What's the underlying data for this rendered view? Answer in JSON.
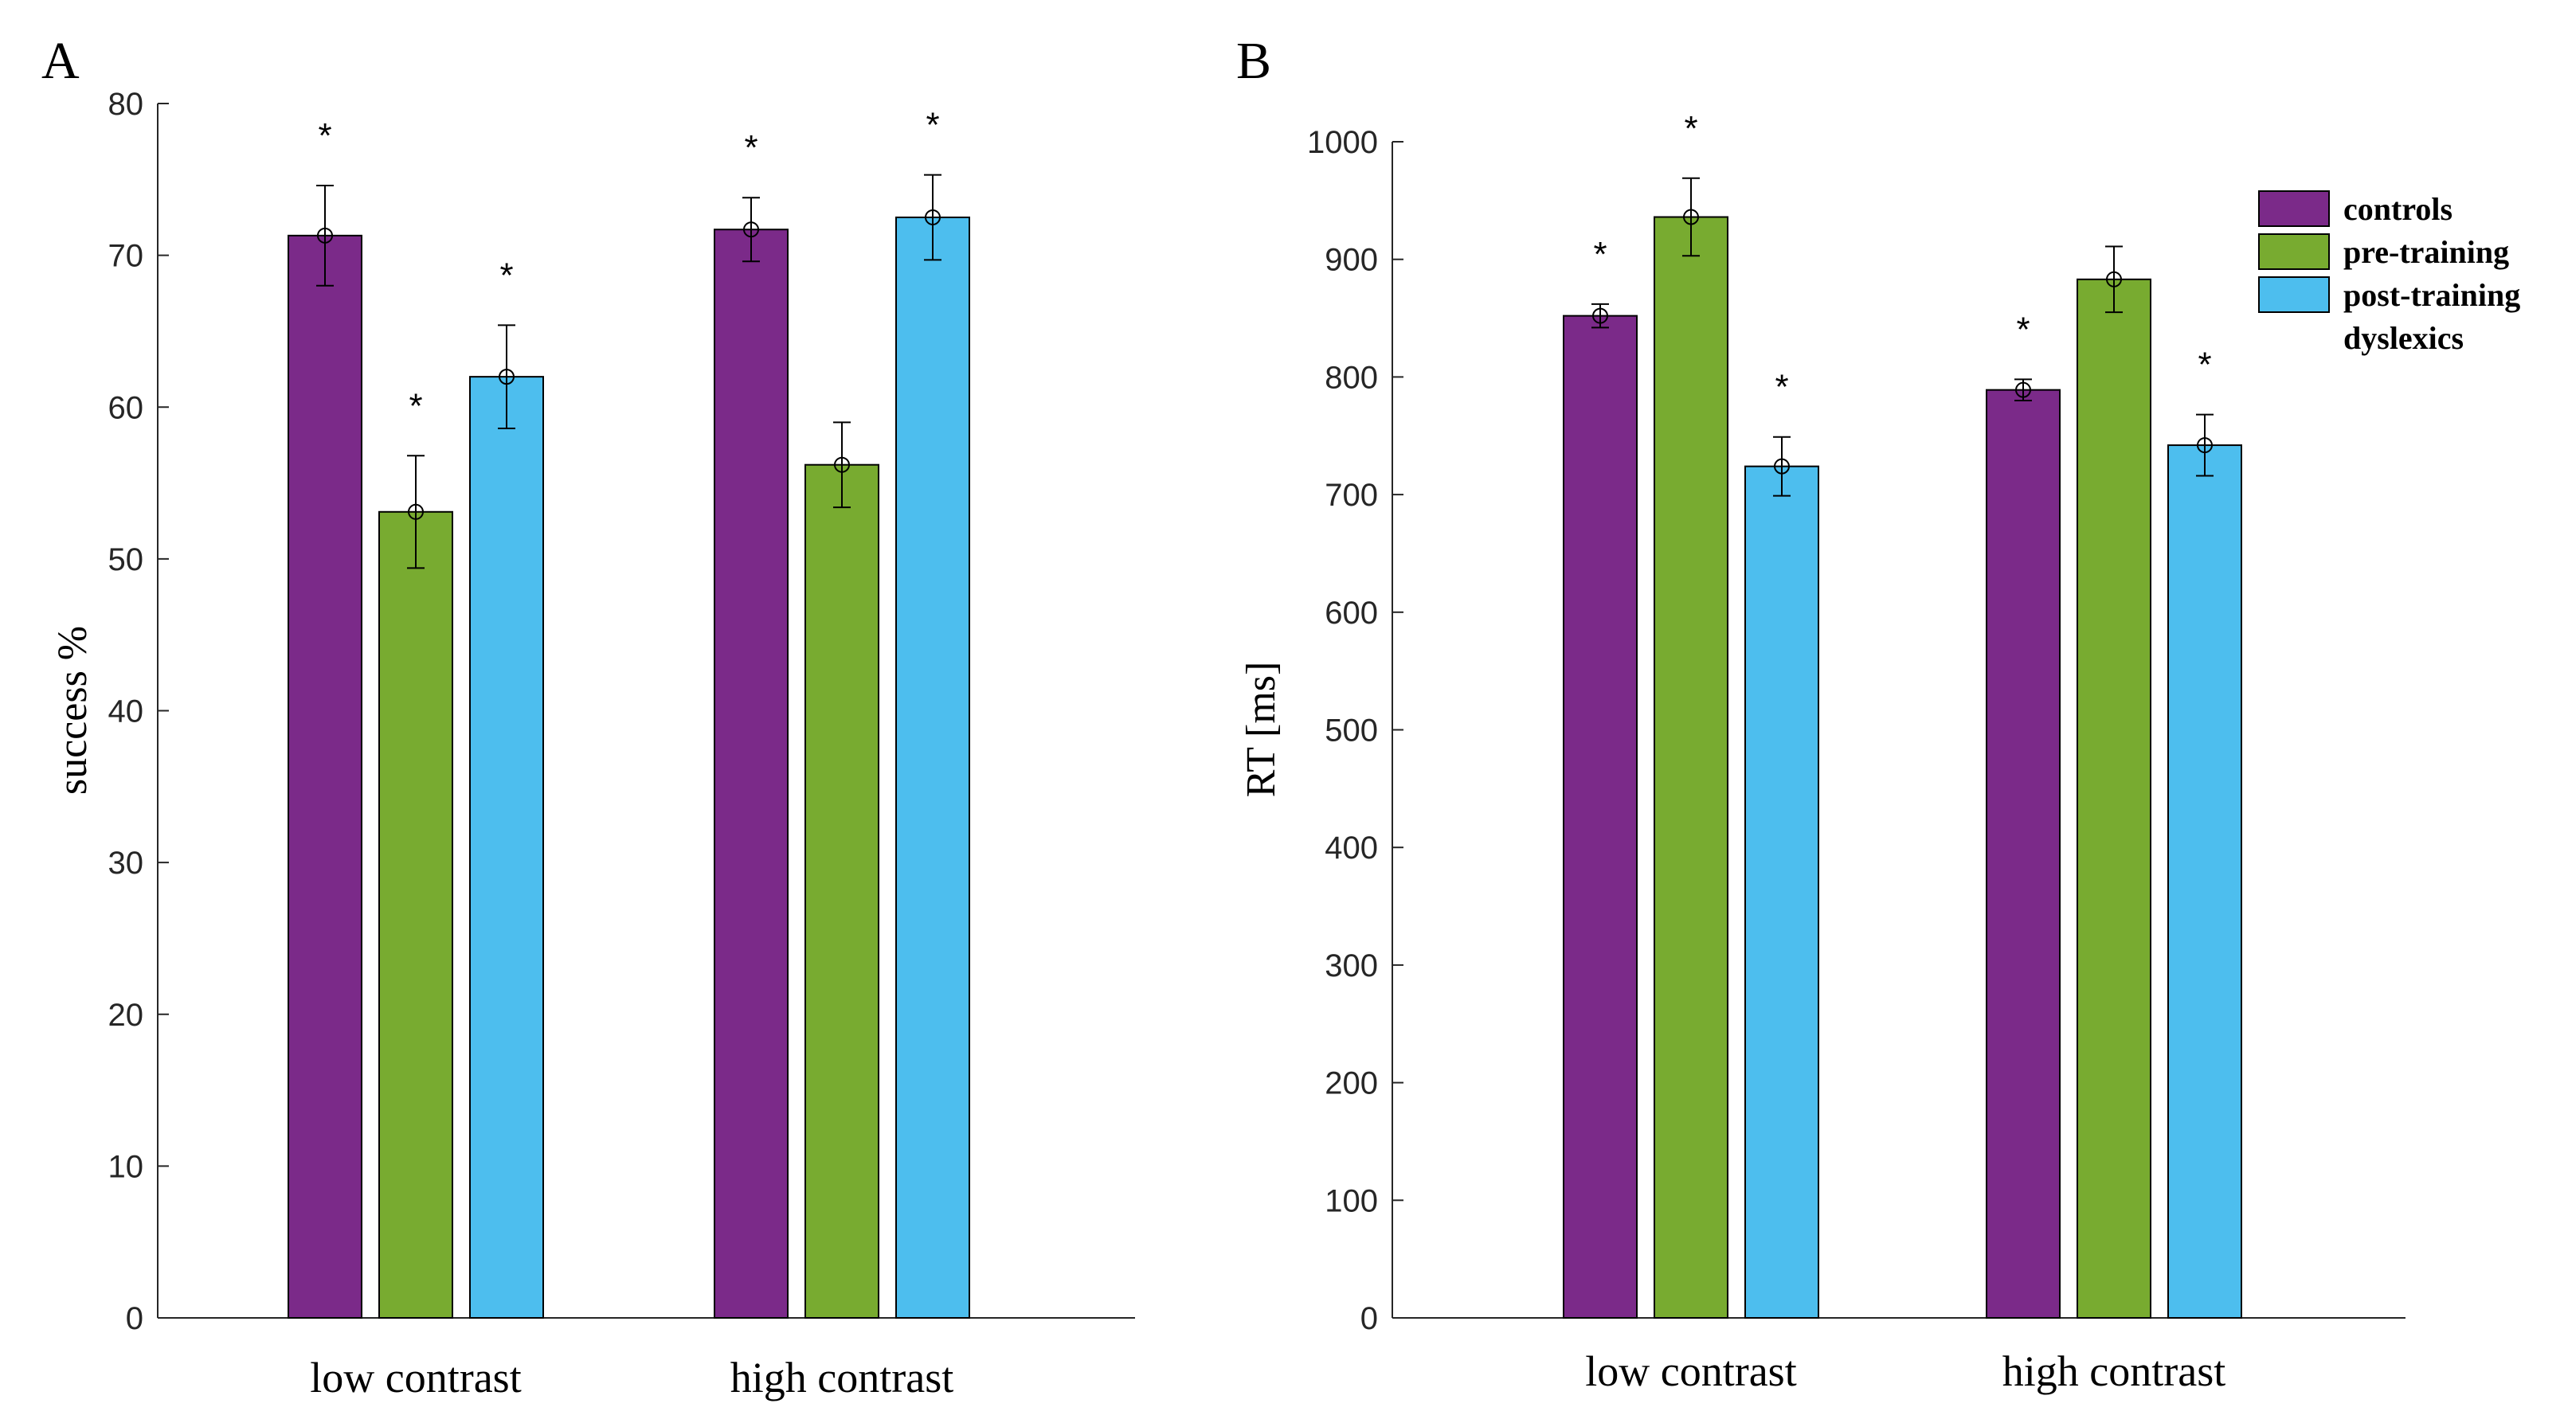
{
  "colors": {
    "controls": "#7b2a89",
    "pre_training": "#78ab30",
    "post_training": "#4dbeee"
  },
  "legend": {
    "items": [
      "controls",
      "pre-training",
      "post-training"
    ],
    "suffix": "dyslexics"
  },
  "chart_data": [
    {
      "type": "bar",
      "panel": "A",
      "title": "",
      "xlabel": "",
      "ylabel": "success %",
      "ylim": [
        0,
        80
      ],
      "yticks": [
        0,
        10,
        20,
        30,
        40,
        50,
        60,
        70,
        80
      ],
      "categories": [
        "low contrast",
        "high contrast"
      ],
      "series": [
        {
          "name": "controls",
          "values": [
            71.3,
            71.7
          ],
          "errors": [
            3.3,
            2.1
          ],
          "significant": [
            true,
            true
          ]
        },
        {
          "name": "pre-training",
          "values": [
            53.1,
            56.2
          ],
          "errors": [
            3.7,
            2.8
          ],
          "significant": [
            true,
            false
          ]
        },
        {
          "name": "post-training",
          "values": [
            62.0,
            72.5
          ],
          "errors": [
            3.4,
            2.8
          ],
          "significant": [
            true,
            true
          ]
        }
      ],
      "marker": "*"
    },
    {
      "type": "bar",
      "panel": "B",
      "title": "",
      "xlabel": "",
      "ylabel": "RT [ms]",
      "ylim": [
        0,
        1000
      ],
      "yticks": [
        0,
        100,
        200,
        300,
        400,
        500,
        600,
        700,
        800,
        900,
        1000
      ],
      "categories": [
        "low contrast",
        "high contrast"
      ],
      "series": [
        {
          "name": "controls",
          "values": [
            852,
            789
          ],
          "errors": [
            10,
            9
          ],
          "significant": [
            true,
            true
          ]
        },
        {
          "name": "pre-training",
          "values": [
            936,
            883
          ],
          "errors": [
            33,
            28
          ],
          "significant": [
            true,
            false
          ]
        },
        {
          "name": "post-training",
          "values": [
            724,
            742
          ],
          "errors": [
            25,
            26
          ],
          "significant": [
            true,
            true
          ]
        }
      ],
      "marker": "*"
    }
  ]
}
